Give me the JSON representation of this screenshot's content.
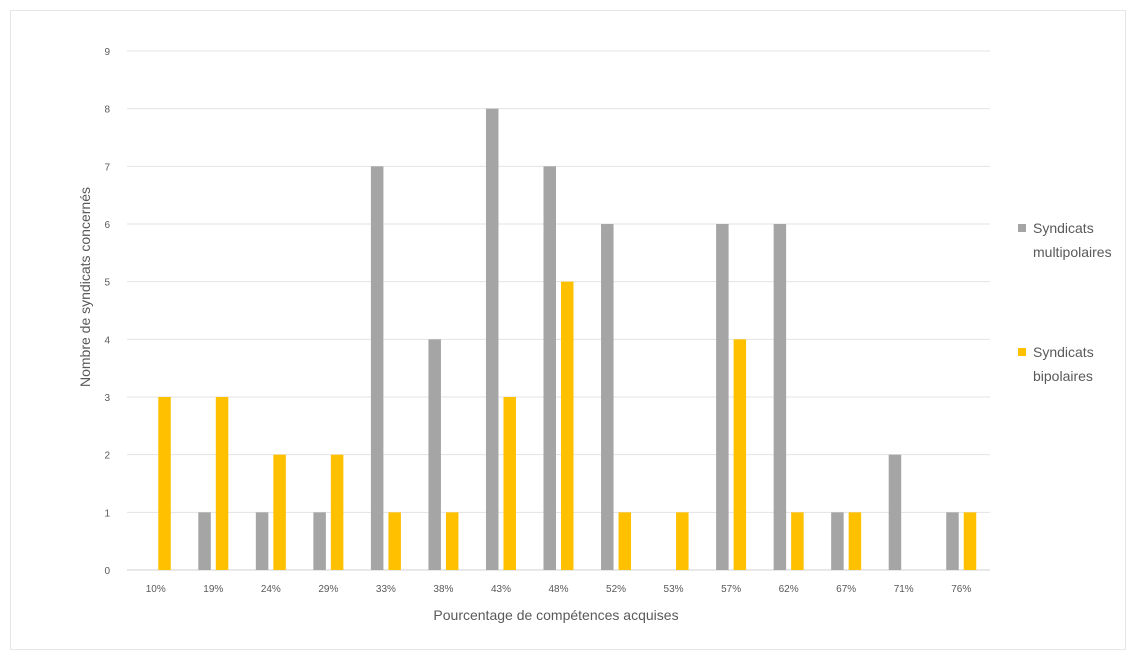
{
  "chart_data": {
    "type": "bar",
    "title": "",
    "xlabel": "Pourcentage de compétences acquises",
    "ylabel": "Nombre de syndicats concernés",
    "ylim": [
      0,
      9
    ],
    "yticks": [
      0,
      1,
      2,
      3,
      4,
      5,
      6,
      7,
      8,
      9
    ],
    "grid": true,
    "legend_position": "right",
    "categories": [
      "10%",
      "19%",
      "24%",
      "29%",
      "33%",
      "38%",
      "43%",
      "48%",
      "52%",
      "53%",
      "57%",
      "62%",
      "67%",
      "71%",
      "76%"
    ],
    "series": [
      {
        "name": "Syndicats multipolaires",
        "name_lines": [
          "Syndicats",
          "multipolaires"
        ],
        "color": "#a5a5a5",
        "values": [
          0,
          1,
          1,
          1,
          7,
          4,
          8,
          7,
          6,
          0,
          6,
          6,
          1,
          2,
          1
        ]
      },
      {
        "name": "Syndicats bipolaires",
        "name_lines": [
          "Syndicats",
          "bipolaires"
        ],
        "color": "#ffc000",
        "values": [
          3,
          3,
          2,
          2,
          1,
          1,
          3,
          5,
          1,
          1,
          4,
          1,
          1,
          0,
          1
        ]
      }
    ]
  }
}
